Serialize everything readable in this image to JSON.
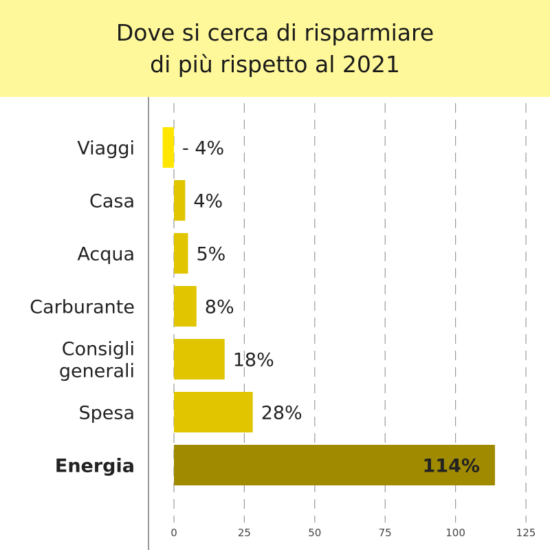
{
  "title_lines": [
    "Dove si cerca di risparmiare",
    "di più rispetto al 2021"
  ],
  "colors": {
    "header_bg": "#FFF89A",
    "negative": "#FFE600",
    "default": "#E0C500",
    "highlight": "#A08A00"
  },
  "chart_data": {
    "type": "bar",
    "orientation": "horizontal",
    "title": "Dove si cerca di risparmiare di più rispetto al 2021",
    "categories": [
      [
        "Viaggi"
      ],
      [
        "Casa"
      ],
      [
        "Acqua"
      ],
      [
        "Carburante"
      ],
      [
        "Consigli",
        "generali"
      ],
      [
        "Spesa"
      ],
      [
        "Energia"
      ]
    ],
    "values": [
      -4,
      4,
      5,
      8,
      18,
      28,
      114
    ],
    "labels": [
      "- 4%",
      "4%",
      "5%",
      "8%",
      "18%",
      "28%",
      "114%"
    ],
    "highlight": "Energia",
    "xlim": [
      0,
      125
    ],
    "xticks": [
      "0",
      "25",
      "50",
      "75",
      "100",
      "125"
    ],
    "grid": "vertical dashed",
    "xlabel": "",
    "ylabel": ""
  }
}
